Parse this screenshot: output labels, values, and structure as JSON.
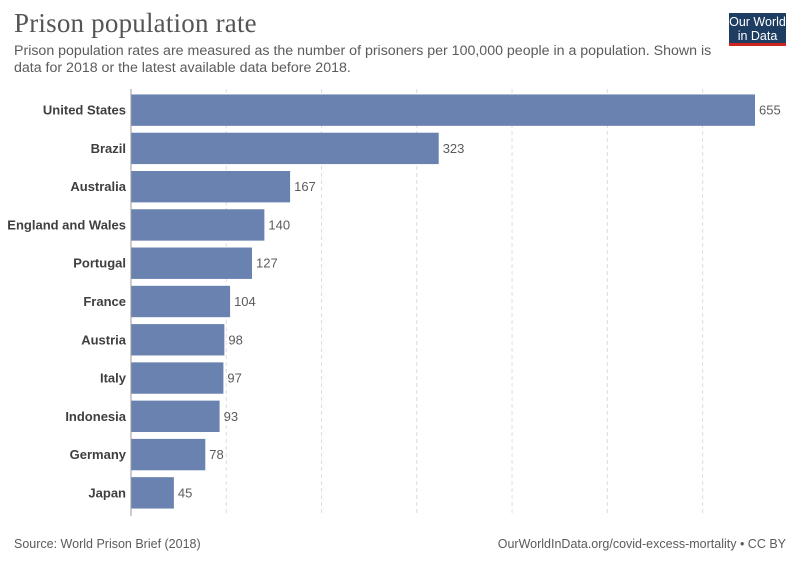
{
  "title": "Prison population rate",
  "subtitle": "Prison population rates are measured as the number of prisoners per 100,000 people in a population. Shown is data for 2018 or the latest available data before 2018.",
  "logo": {
    "line1": "Our World",
    "line2": "in Data"
  },
  "footer": {
    "source": "Source: World Prison Brief (2018)",
    "credit": "OurWorldInData.org/covid-excess-mortality • CC BY"
  },
  "colors": {
    "bar": "#6982b0",
    "logo_bg": "#1d3d63",
    "logo_accent": "#ce261e",
    "grid": "#dddddd",
    "text": "#5b5b5b"
  },
  "chart_data": {
    "type": "bar",
    "orientation": "horizontal",
    "categories": [
      "United States",
      "Brazil",
      "Australia",
      "England and Wales",
      "Portugal",
      "France",
      "Austria",
      "Italy",
      "Indonesia",
      "Germany",
      "Japan"
    ],
    "values": [
      655,
      323,
      167,
      140,
      127,
      104,
      98,
      97,
      93,
      78,
      45
    ],
    "title": "Prison population rate",
    "xlabel": "",
    "ylabel": "",
    "xlim": [
      0,
      655
    ],
    "gridlines": [
      100,
      200,
      300,
      400,
      500,
      600
    ]
  }
}
